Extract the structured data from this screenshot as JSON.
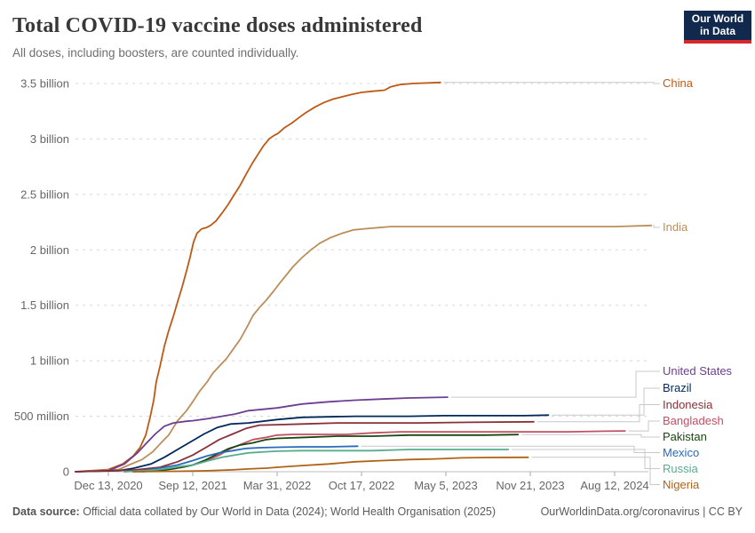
{
  "header": {
    "title": "Total COVID-19 vaccine doses administered",
    "subtitle": "All doses, including boosters, are counted individually."
  },
  "logo": {
    "line1": "Our World",
    "line2": "in Data",
    "bg": "#12294E",
    "accent": "#D7262C"
  },
  "chart_data": {
    "type": "line",
    "title": "Total COVID-19 vaccine doses administered",
    "subtitle": "All doses, including boosters, are counted individually.",
    "xlabel": "",
    "ylabel": "",
    "ylim": [
      0,
      3.5
    ],
    "y_unit": "billion doses",
    "grid": "dashed horizontal gridlines",
    "legend_position": "right edge entity labels",
    "x_start_date": "2020-12-01",
    "x_end_date": "2025-01-01",
    "x_ticks": [
      {
        "date": "2020-12-13",
        "label": "Dec 13, 2020"
      },
      {
        "date": "2021-09-12",
        "label": "Sep 12, 2021"
      },
      {
        "date": "2022-03-31",
        "label": "Mar 31, 2022"
      },
      {
        "date": "2022-10-17",
        "label": "Oct 17, 2022"
      },
      {
        "date": "2023-05-05",
        "label": "May 5, 2023"
      },
      {
        "date": "2023-11-21",
        "label": "Nov 21, 2023"
      },
      {
        "date": "2024-08-12",
        "label": "Aug 12, 2024"
      }
    ],
    "y_ticks": [
      {
        "value": 0,
        "label": "0"
      },
      {
        "value": 0.5,
        "label": "500 million"
      },
      {
        "value": 1,
        "label": "1 billion"
      },
      {
        "value": 1.5,
        "label": "1.5 billion"
      },
      {
        "value": 2,
        "label": "2 billion"
      },
      {
        "value": 2.5,
        "label": "2.5 billion"
      },
      {
        "value": 3,
        "label": "3 billion"
      },
      {
        "value": 3.5,
        "label": "3.5 billion"
      }
    ],
    "series": [
      {
        "name": "China",
        "color": "#BE5915",
        "points": [
          [
            "2020-12-01",
            0
          ],
          [
            "2020-12-13",
            0.02
          ],
          [
            "2021-01-28",
            0.07
          ],
          [
            "2021-03-03",
            0.14
          ],
          [
            "2021-03-26",
            0.22
          ],
          [
            "2021-04-13",
            0.33
          ],
          [
            "2021-04-27",
            0.49
          ],
          [
            "2021-05-09",
            0.65
          ],
          [
            "2021-05-17",
            0.81
          ],
          [
            "2021-05-29",
            0.95
          ],
          [
            "2021-06-12",
            1.13
          ],
          [
            "2021-06-26",
            1.27
          ],
          [
            "2021-07-11",
            1.4
          ],
          [
            "2021-07-25",
            1.53
          ],
          [
            "2021-08-09",
            1.67
          ],
          [
            "2021-08-23",
            1.81
          ],
          [
            "2021-09-03",
            1.93
          ],
          [
            "2021-09-14",
            2.07
          ],
          [
            "2021-09-22",
            2.15
          ],
          [
            "2021-10-03",
            2.19
          ],
          [
            "2021-10-14",
            2.2
          ],
          [
            "2021-10-24",
            2.22
          ],
          [
            "2021-11-06",
            2.26
          ],
          [
            "2021-11-20",
            2.33
          ],
          [
            "2021-12-05",
            2.41
          ],
          [
            "2021-12-18",
            2.49
          ],
          [
            "2022-01-02",
            2.58
          ],
          [
            "2022-01-16",
            2.68
          ],
          [
            "2022-01-31",
            2.78
          ],
          [
            "2022-02-15",
            2.87
          ],
          [
            "2022-02-27",
            2.94
          ],
          [
            "2022-03-12",
            3.0
          ],
          [
            "2022-03-23",
            3.03
          ],
          [
            "2022-04-02",
            3.05
          ],
          [
            "2022-04-17",
            3.1
          ],
          [
            "2022-05-04",
            3.14
          ],
          [
            "2022-05-21",
            3.19
          ],
          [
            "2022-06-08",
            3.24
          ],
          [
            "2022-06-30",
            3.29
          ],
          [
            "2022-07-21",
            3.33
          ],
          [
            "2022-08-11",
            3.36
          ],
          [
            "2022-09-01",
            3.38
          ],
          [
            "2022-09-22",
            3.4
          ],
          [
            "2022-10-17",
            3.42
          ],
          [
            "2022-11-13",
            3.43
          ],
          [
            "2022-12-11",
            3.44
          ],
          [
            "2022-12-25",
            3.47
          ],
          [
            "2023-01-16",
            3.49
          ],
          [
            "2023-02-16",
            3.5
          ],
          [
            "2023-04-22",
            3.51
          ]
        ]
      },
      {
        "name": "India",
        "color": "#BC8E5A",
        "points": [
          [
            "2020-12-01",
            0
          ],
          [
            "2021-01-16",
            0.02
          ],
          [
            "2021-02-17",
            0.06
          ],
          [
            "2021-04-01",
            0.11
          ],
          [
            "2021-05-06",
            0.18
          ],
          [
            "2021-05-29",
            0.25
          ],
          [
            "2021-06-26",
            0.33
          ],
          [
            "2021-07-25",
            0.46
          ],
          [
            "2021-08-23",
            0.55
          ],
          [
            "2021-09-12",
            0.63
          ],
          [
            "2021-09-29",
            0.73
          ],
          [
            "2021-10-16",
            0.81
          ],
          [
            "2021-10-30",
            0.89
          ],
          [
            "2021-11-16",
            0.96
          ],
          [
            "2021-12-01",
            1.02
          ],
          [
            "2021-12-16",
            1.1
          ],
          [
            "2022-01-02",
            1.19
          ],
          [
            "2022-01-18",
            1.3
          ],
          [
            "2022-02-02",
            1.41
          ],
          [
            "2022-02-17",
            1.48
          ],
          [
            "2022-03-06",
            1.55
          ],
          [
            "2022-03-23",
            1.63
          ],
          [
            "2022-04-06",
            1.7
          ],
          [
            "2022-04-21",
            1.77
          ],
          [
            "2022-05-08",
            1.85
          ],
          [
            "2022-05-29",
            1.93
          ],
          [
            "2022-06-19",
            2.0
          ],
          [
            "2022-07-10",
            2.06
          ],
          [
            "2022-08-04",
            2.11
          ],
          [
            "2022-09-01",
            2.15
          ],
          [
            "2022-09-28",
            2.18
          ],
          [
            "2022-10-23",
            2.19
          ],
          [
            "2022-11-24",
            2.2
          ],
          [
            "2022-12-25",
            2.21
          ],
          [
            "2023-05-01",
            2.21
          ],
          [
            "2023-08-14",
            2.21
          ],
          [
            "2023-11-29",
            2.21
          ],
          [
            "2024-04-26",
            2.21
          ],
          [
            "2024-08-12",
            2.21
          ],
          [
            "2024-12-20",
            2.22
          ]
        ]
      },
      {
        "name": "United States",
        "color": "#6D3E91",
        "points": [
          [
            "2020-12-01",
            0
          ],
          [
            "2020-12-13",
            0.01
          ],
          [
            "2021-02-03",
            0.07
          ],
          [
            "2021-03-17",
            0.17
          ],
          [
            "2021-04-16",
            0.26
          ],
          [
            "2021-05-14",
            0.34
          ],
          [
            "2021-06-12",
            0.41
          ],
          [
            "2021-07-11",
            0.44
          ],
          [
            "2021-08-23",
            0.455
          ],
          [
            "2021-09-12",
            0.46
          ],
          [
            "2021-10-20",
            0.48
          ],
          [
            "2021-11-20",
            0.5
          ],
          [
            "2021-12-21",
            0.52
          ],
          [
            "2022-01-22",
            0.55
          ],
          [
            "2022-03-31",
            0.575
          ],
          [
            "2022-05-29",
            0.61
          ],
          [
            "2022-07-31",
            0.63
          ],
          [
            "2022-10-02",
            0.645
          ],
          [
            "2022-12-05",
            0.655
          ],
          [
            "2023-02-06",
            0.665
          ],
          [
            "2023-05-09",
            0.672
          ]
        ]
      },
      {
        "name": "Brazil",
        "color": "#00295B",
        "points": [
          [
            "2020-12-01",
            0
          ],
          [
            "2021-01-16",
            0.01
          ],
          [
            "2021-03-03",
            0.03
          ],
          [
            "2021-04-30",
            0.07
          ],
          [
            "2021-06-12",
            0.13
          ],
          [
            "2021-07-25",
            0.2
          ],
          [
            "2021-09-12",
            0.28
          ],
          [
            "2021-10-09",
            0.34
          ],
          [
            "2021-11-10",
            0.4
          ],
          [
            "2021-12-11",
            0.43
          ],
          [
            "2022-01-22",
            0.44
          ],
          [
            "2022-03-31",
            0.47
          ],
          [
            "2022-05-29",
            0.49
          ],
          [
            "2022-07-31",
            0.495
          ],
          [
            "2022-10-02",
            0.5
          ],
          [
            "2023-02-06",
            0.5
          ],
          [
            "2023-05-01",
            0.505
          ],
          [
            "2023-11-07",
            0.505
          ],
          [
            "2024-01-17",
            0.51
          ]
        ]
      },
      {
        "name": "Indonesia",
        "color": "#883039",
        "points": [
          [
            "2020-12-01",
            0
          ],
          [
            "2021-03-03",
            0.015
          ],
          [
            "2021-05-29",
            0.04
          ],
          [
            "2021-07-25",
            0.09
          ],
          [
            "2021-09-12",
            0.15
          ],
          [
            "2021-10-14",
            0.22
          ],
          [
            "2021-11-14",
            0.29
          ],
          [
            "2021-12-16",
            0.34
          ],
          [
            "2022-01-16",
            0.39
          ],
          [
            "2022-02-17",
            0.42
          ],
          [
            "2022-03-31",
            0.424
          ],
          [
            "2022-05-29",
            0.43
          ],
          [
            "2022-08-21",
            0.44
          ],
          [
            "2022-11-13",
            0.44
          ],
          [
            "2023-02-27",
            0.44
          ],
          [
            "2023-07-03",
            0.445
          ],
          [
            "2023-12-02",
            0.45
          ]
        ]
      },
      {
        "name": "Bangladesh",
        "color": "#C15065",
        "points": [
          [
            "2021-03-03",
            0
          ],
          [
            "2021-05-14",
            0.01
          ],
          [
            "2021-07-11",
            0.025
          ],
          [
            "2021-09-12",
            0.06
          ],
          [
            "2021-10-14",
            0.1
          ],
          [
            "2021-11-14",
            0.15
          ],
          [
            "2021-12-11",
            0.21
          ],
          [
            "2022-01-06",
            0.25
          ],
          [
            "2022-02-02",
            0.29
          ],
          [
            "2022-03-06",
            0.31
          ],
          [
            "2022-03-31",
            0.33
          ],
          [
            "2022-05-08",
            0.336
          ],
          [
            "2022-09-12",
            0.336
          ],
          [
            "2022-11-13",
            0.35
          ],
          [
            "2023-01-16",
            0.36
          ],
          [
            "2023-06-12",
            0.36
          ],
          [
            "2023-12-02",
            0.36
          ],
          [
            "2024-03-20",
            0.36
          ],
          [
            "2024-07-10",
            0.365
          ],
          [
            "2024-09-18",
            0.368
          ]
        ]
      },
      {
        "name": "Pakistan",
        "color": "#18470F",
        "points": [
          [
            "2021-03-31",
            0
          ],
          [
            "2021-06-12",
            0.015
          ],
          [
            "2021-08-09",
            0.04
          ],
          [
            "2021-09-12",
            0.06
          ],
          [
            "2021-10-09",
            0.1
          ],
          [
            "2021-11-10",
            0.16
          ],
          [
            "2021-12-07",
            0.21
          ],
          [
            "2022-01-02",
            0.24
          ],
          [
            "2022-02-02",
            0.26
          ],
          [
            "2022-03-06",
            0.29
          ],
          [
            "2022-03-31",
            0.3
          ],
          [
            "2022-06-08",
            0.31
          ],
          [
            "2022-08-21",
            0.32
          ],
          [
            "2022-11-13",
            0.32
          ],
          [
            "2023-02-06",
            0.33
          ],
          [
            "2023-08-04",
            0.33
          ],
          [
            "2023-10-23",
            0.335
          ]
        ]
      },
      {
        "name": "Mexico",
        "color": "#286BBB",
        "points": [
          [
            "2021-02-03",
            0
          ],
          [
            "2021-04-16",
            0.015
          ],
          [
            "2021-06-12",
            0.04
          ],
          [
            "2021-07-25",
            0.06
          ],
          [
            "2021-09-12",
            0.1
          ],
          [
            "2021-10-14",
            0.14
          ],
          [
            "2021-11-14",
            0.17
          ],
          [
            "2021-12-16",
            0.19
          ],
          [
            "2022-01-16",
            0.21
          ],
          [
            "2022-02-17",
            0.216
          ],
          [
            "2022-03-31",
            0.22
          ],
          [
            "2022-05-29",
            0.224
          ],
          [
            "2022-07-31",
            0.224
          ],
          [
            "2022-10-08",
            0.23
          ]
        ]
      },
      {
        "name": "Russia",
        "color": "#58AC8C",
        "points": [
          [
            "2021-02-03",
            0
          ],
          [
            "2021-04-16",
            0.01
          ],
          [
            "2021-06-12",
            0.025
          ],
          [
            "2021-08-09",
            0.05
          ],
          [
            "2021-09-12",
            0.06
          ],
          [
            "2021-10-20",
            0.1
          ],
          [
            "2021-11-20",
            0.13
          ],
          [
            "2021-12-21",
            0.15
          ],
          [
            "2022-01-22",
            0.17
          ],
          [
            "2022-03-06",
            0.18
          ],
          [
            "2022-03-31",
            0.185
          ],
          [
            "2022-05-29",
            0.19
          ],
          [
            "2022-11-13",
            0.19
          ],
          [
            "2023-02-06",
            0.2
          ],
          [
            "2023-05-01",
            0.2
          ],
          [
            "2023-09-30",
            0.2
          ]
        ]
      },
      {
        "name": "Nigeria",
        "color": "#B16214",
        "points": [
          [
            "2021-03-03",
            0
          ],
          [
            "2021-07-25",
            0.004
          ],
          [
            "2021-10-09",
            0.008
          ],
          [
            "2021-12-11",
            0.016
          ],
          [
            "2022-01-22",
            0.025
          ],
          [
            "2022-03-06",
            0.032
          ],
          [
            "2022-03-31",
            0.04
          ],
          [
            "2022-05-29",
            0.055
          ],
          [
            "2022-07-31",
            0.07
          ],
          [
            "2022-10-02",
            0.09
          ],
          [
            "2022-12-05",
            0.1
          ],
          [
            "2023-02-06",
            0.11
          ],
          [
            "2023-04-10",
            0.115
          ],
          [
            "2023-06-12",
            0.125
          ],
          [
            "2023-08-14",
            0.128
          ],
          [
            "2023-11-16",
            0.13
          ]
        ]
      }
    ]
  },
  "footer": {
    "source_label": "Data source:",
    "source_text": " Official data collated by Our World in Data (2024); World Health Organisation (2025)",
    "link": "OurWorldinData.org/coronavirus",
    "separator": " | ",
    "license": "CC BY"
  }
}
